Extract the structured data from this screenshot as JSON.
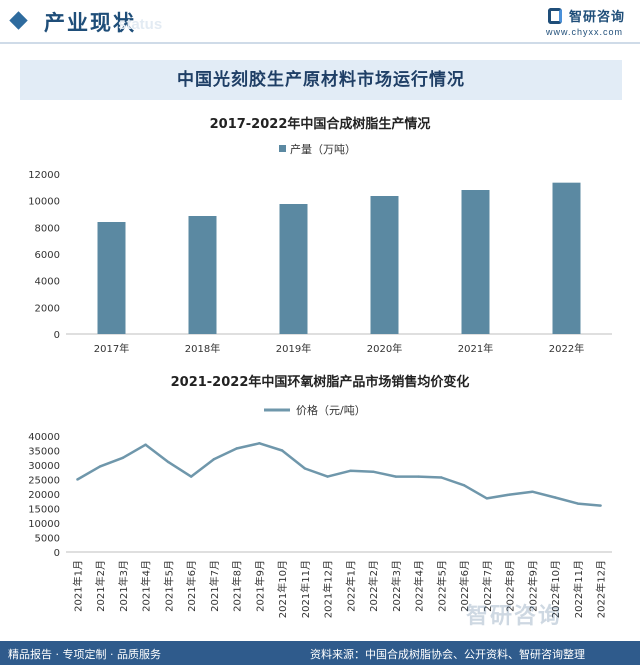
{
  "header": {
    "title": "产业现状",
    "watermark": "status",
    "logo_name": "智研咨询",
    "logo_url": "www.chyxx.com"
  },
  "banner": {
    "title": "中国光刻胶生产原材料市场运行情况"
  },
  "footer": {
    "left": "精品报告 · 专项定制 · 品质服务",
    "source": "资料来源：中国合成树脂协会、公开资料、智研咨询整理",
    "watermark": "智研咨询"
  },
  "colors": {
    "bar": "#5b89a2",
    "line": "#6f97ab",
    "header": "#1f4e79",
    "footer": "#2f5b8c"
  },
  "chart_data": [
    {
      "type": "bar",
      "title": "2017-2022年中国合成树脂生产情况",
      "legend": "产量（万吨）",
      "legend_position": "top",
      "categories": [
        "2017年",
        "2018年",
        "2019年",
        "2020年",
        "2021年",
        "2022年"
      ],
      "series": [
        {
          "name": "产量（万吨）",
          "values": [
            8400,
            8850,
            9750,
            10350,
            10800,
            11350
          ]
        }
      ],
      "ylim": [
        0,
        12000
      ],
      "yticks": [
        0,
        2000,
        4000,
        6000,
        8000,
        10000,
        12000
      ],
      "grid": false
    },
    {
      "type": "line",
      "title": "2021-2022年中国环氧树脂产品市场销售均价变化",
      "legend": "价格（元/吨）",
      "legend_position": "top",
      "categories": [
        "2021年1月",
        "2021年2月",
        "2021年3月",
        "2021年4月",
        "2021年5月",
        "2021年6月",
        "2021年7月",
        "2021年8月",
        "2021年9月",
        "2021年10月",
        "2021年11月",
        "2021年12月",
        "2022年1月",
        "2022年2月",
        "2022年3月",
        "2022年4月",
        "2022年5月",
        "2022年6月",
        "2022年7月",
        "2022年8月",
        "2022年9月",
        "2022年10月",
        "2022年11月",
        "2022年12月"
      ],
      "series": [
        {
          "name": "价格（元/吨）",
          "values": [
            25000,
            29500,
            32500,
            37000,
            31000,
            26000,
            32000,
            35700,
            37500,
            35000,
            28800,
            26000,
            28000,
            27700,
            26000,
            26000,
            25700,
            23000,
            18500,
            19800,
            20800,
            18800,
            16700,
            16000
          ]
        }
      ],
      "ylim": [
        0,
        40000
      ],
      "yticks": [
        0,
        5000,
        10000,
        15000,
        20000,
        25000,
        30000,
        35000,
        40000
      ],
      "grid": false
    }
  ]
}
